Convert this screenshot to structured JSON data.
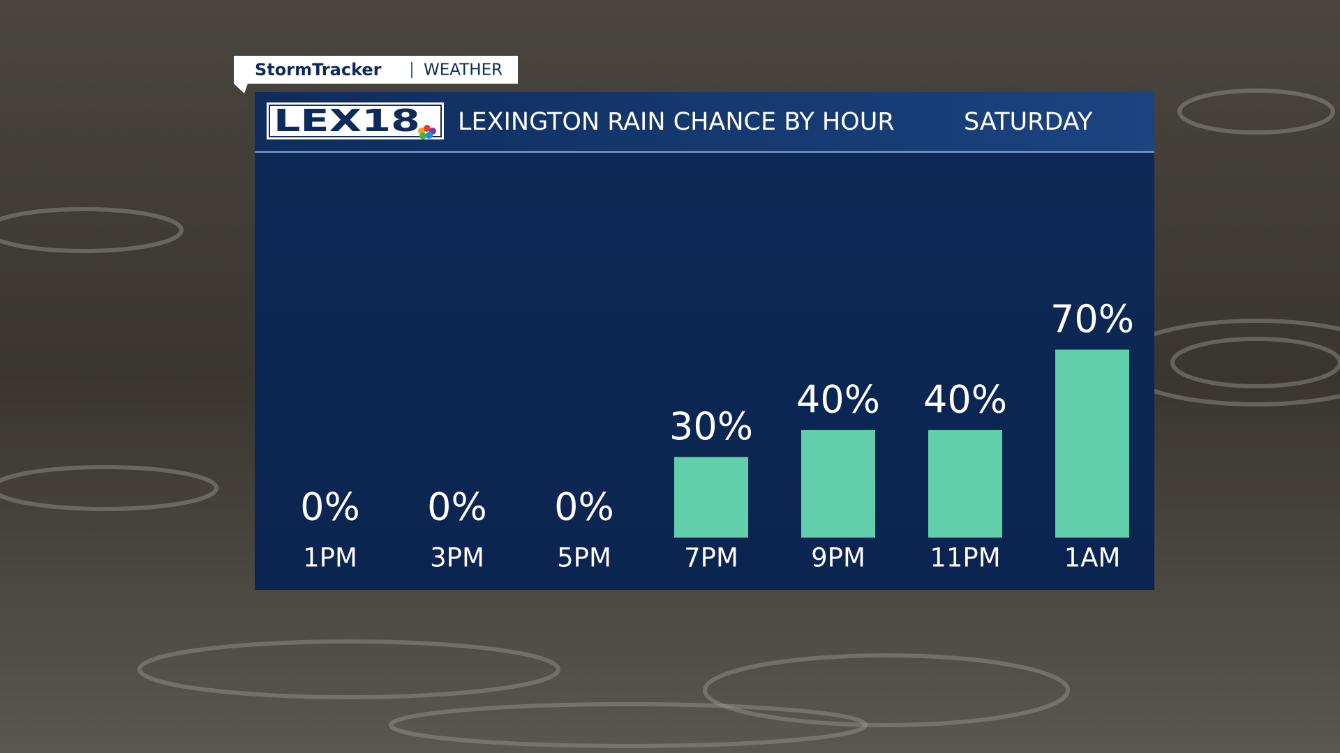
{
  "header": {
    "show": "StormTracker",
    "section": "WEATHER",
    "logo": "LEX18"
  },
  "chart_data": {
    "type": "bar",
    "title": "LEXINGTON RAIN CHANCE BY HOUR",
    "subtitle": "SATURDAY",
    "categories": [
      "1PM",
      "3PM",
      "5PM",
      "7PM",
      "9PM",
      "11PM",
      "1AM"
    ],
    "values": [
      0,
      0,
      0,
      30,
      40,
      40,
      70
    ],
    "value_labels": [
      "0%",
      "0%",
      "0%",
      "30%",
      "40%",
      "40%",
      "70%"
    ],
    "color": "#62cfab"
  }
}
